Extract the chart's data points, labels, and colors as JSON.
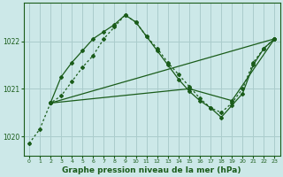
{
  "bg_color": "#cce8e8",
  "grid_color": "#aacccc",
  "line_color": "#1a5c1a",
  "title": "Graphe pression niveau de la mer (hPa)",
  "title_fontsize": 6.5,
  "xlim": [
    -0.5,
    23.5
  ],
  "ylim": [
    1019.6,
    1022.8
  ],
  "yticks": [
    1020,
    1021,
    1022
  ],
  "xticks": [
    0,
    1,
    2,
    3,
    4,
    5,
    6,
    7,
    8,
    9,
    10,
    11,
    12,
    13,
    14,
    15,
    16,
    17,
    18,
    19,
    20,
    21,
    22,
    23
  ],
  "line1_x": [
    0,
    1,
    2,
    3,
    4,
    5,
    6,
    7,
    8,
    9,
    10,
    11,
    12,
    13,
    14,
    15,
    16,
    17,
    18,
    19,
    20,
    21,
    22,
    23
  ],
  "line1_y": [
    1019.85,
    1020.15,
    1020.7,
    1020.85,
    1021.15,
    1021.45,
    1021.7,
    1022.05,
    1022.3,
    1022.55,
    1022.4,
    1022.1,
    1021.85,
    1021.55,
    1021.3,
    1021.05,
    1020.8,
    1020.6,
    1020.5,
    1020.7,
    1021.0,
    1021.55,
    1021.85,
    1022.05
  ],
  "line2_x": [
    2,
    3,
    4,
    5,
    6,
    7,
    8,
    9,
    10,
    11,
    12,
    13,
    14,
    15,
    16,
    17,
    18,
    19,
    20,
    21,
    22,
    23
  ],
  "line2_y": [
    1020.7,
    1021.25,
    1021.55,
    1021.8,
    1022.05,
    1022.2,
    1022.35,
    1022.55,
    1022.4,
    1022.1,
    1021.8,
    1021.5,
    1021.2,
    1020.95,
    1020.75,
    1020.6,
    1020.4,
    1020.65,
    1020.9,
    1021.5,
    1021.85,
    1022.05
  ],
  "line3_x": [
    2,
    23
  ],
  "line3_y": [
    1020.7,
    1022.05
  ],
  "line4_x": [
    2,
    15,
    19,
    23
  ],
  "line4_y": [
    1020.7,
    1021.0,
    1020.75,
    1022.05
  ]
}
